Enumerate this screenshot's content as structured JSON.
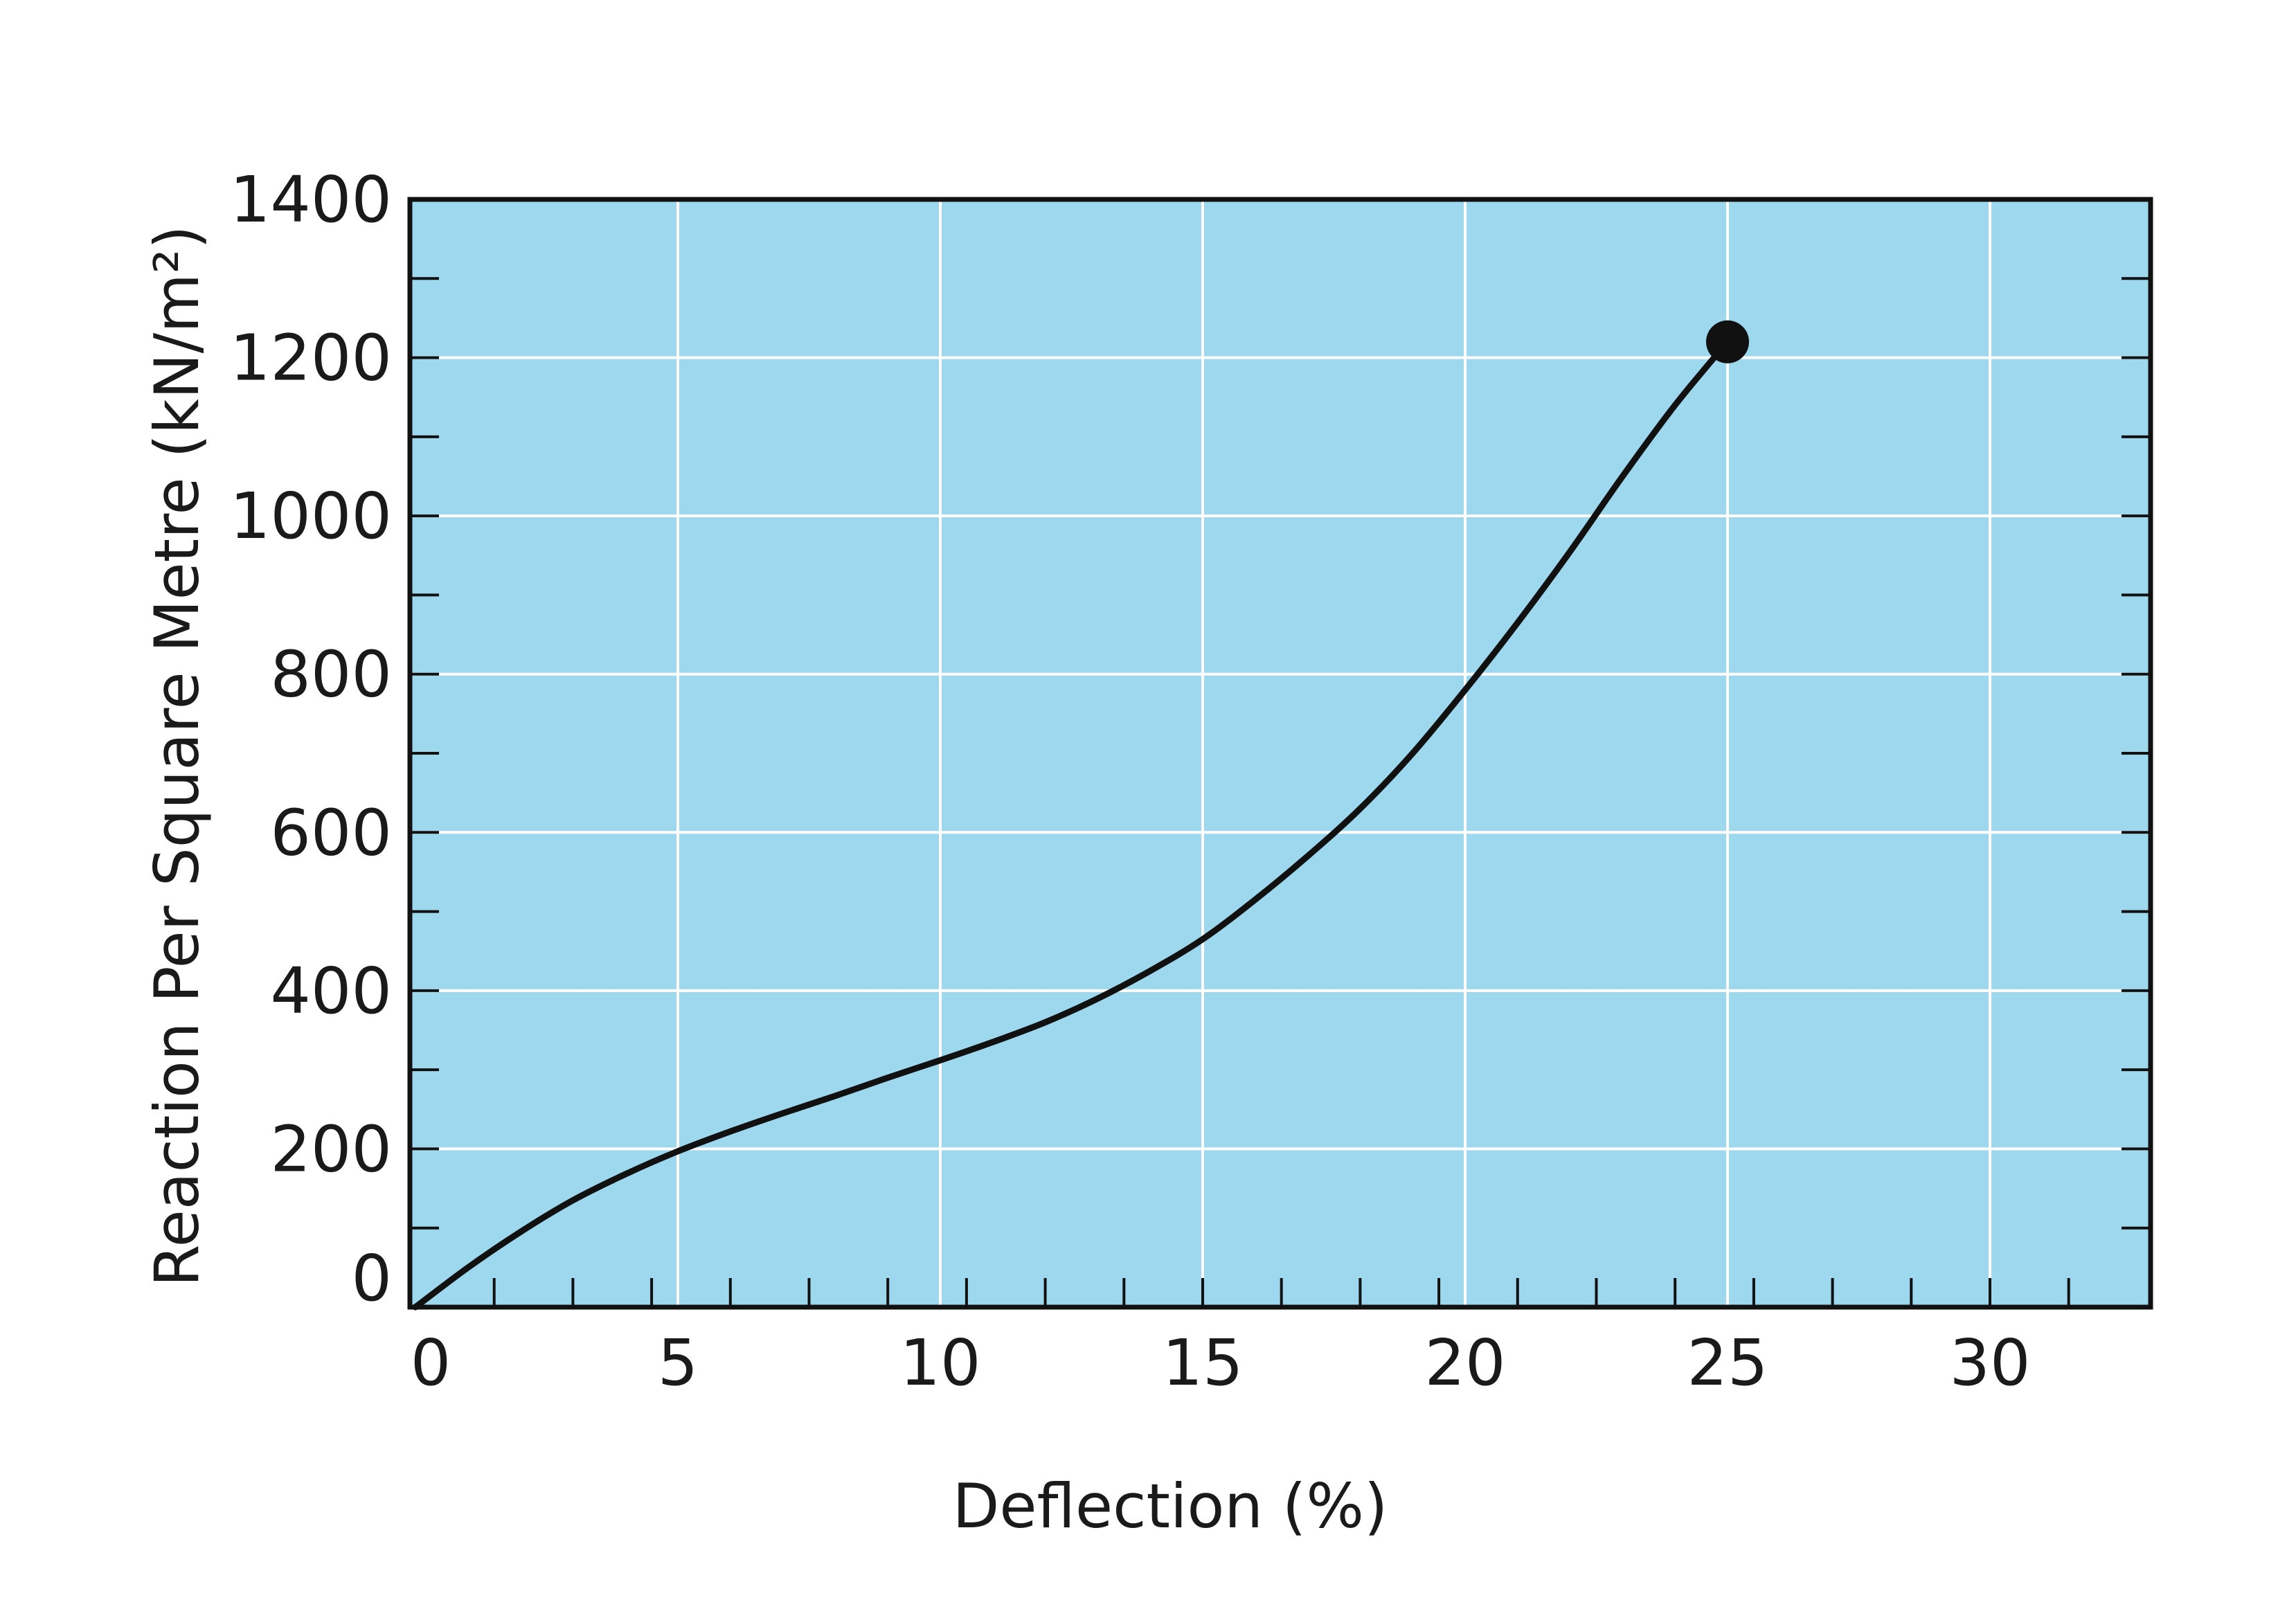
{
  "chart_data": {
    "type": "line",
    "title": "",
    "xlabel": "Deflection (%)",
    "ylabel": "Reaction Per Square Metre (kN/m²)",
    "xlim": [
      0,
      33
    ],
    "ylim": [
      0,
      1400
    ],
    "x_ticks": [
      0,
      5,
      10,
      15,
      20,
      25,
      30
    ],
    "x_tick_labels": [
      "0",
      "5",
      "10",
      "15",
      "20",
      "25",
      "30"
    ],
    "y_ticks": [
      0,
      200,
      400,
      600,
      800,
      1000,
      1200,
      1400
    ],
    "y_tick_labels": [
      "0",
      "200",
      "400",
      "600",
      "800",
      "1000",
      "1200",
      "1400"
    ],
    "x_minor_step": 1.5,
    "y_minor_step": 100,
    "grid": true,
    "legend": "none",
    "series": [
      {
        "x": [
          0,
          1,
          2,
          3,
          4,
          5,
          6,
          7,
          8,
          9,
          10,
          11,
          12,
          13,
          14,
          15,
          16,
          17,
          18,
          19,
          20,
          21,
          22,
          23,
          24,
          25
        ],
        "y": [
          0,
          50,
          95,
          135,
          168,
          197,
          222,
          245,
          267,
          290,
          312,
          335,
          360,
          390,
          425,
          465,
          515,
          570,
          630,
          700,
          780,
          865,
          955,
          1050,
          1140,
          1220
        ],
        "end_marker": {
          "x": 25,
          "y": 1220
        }
      }
    ],
    "colors": {
      "plot_background": "#9ed8ef",
      "grid": "#ffffff",
      "line": "#111111",
      "frame": "#111111"
    }
  }
}
